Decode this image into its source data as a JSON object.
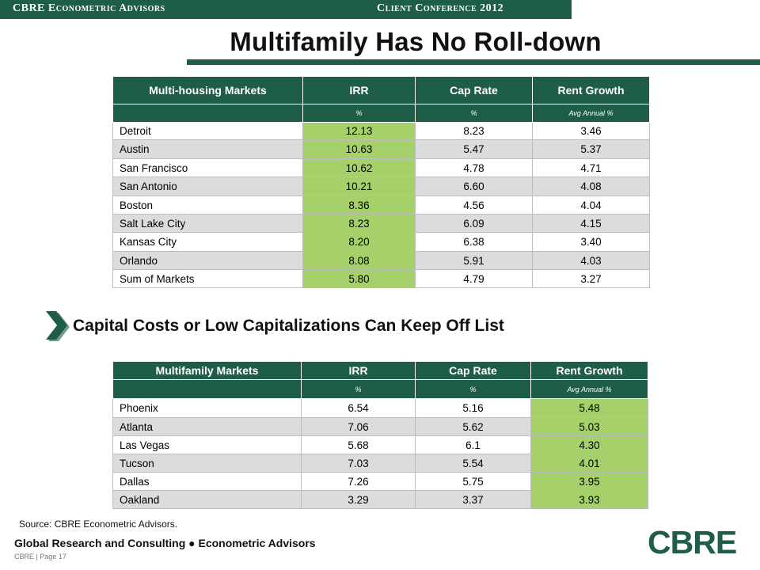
{
  "header": {
    "org": "CBRE Econometric Advisors",
    "event": "Client Conference 2012"
  },
  "title": "Multifamily Has No Roll-down",
  "table1": {
    "headers": [
      "Multi-housing Markets",
      "IRR",
      "Cap Rate",
      "Rent Growth"
    ],
    "units": [
      "",
      "%",
      "%",
      "Avg Annual %"
    ],
    "rows": [
      {
        "market": "Detroit",
        "irr": "12.13",
        "cap": "8.23",
        "rent": "3.46"
      },
      {
        "market": "Austin",
        "irr": "10.63",
        "cap": "5.47",
        "rent": "5.37"
      },
      {
        "market": "San Francisco",
        "irr": "10.62",
        "cap": "4.78",
        "rent": "4.71"
      },
      {
        "market": "San Antonio",
        "irr": "10.21",
        "cap": "6.60",
        "rent": "4.08"
      },
      {
        "market": "Boston",
        "irr": "8.36",
        "cap": "4.56",
        "rent": "4.04"
      },
      {
        "market": "Salt Lake City",
        "irr": "8.23",
        "cap": "6.09",
        "rent": "4.15"
      },
      {
        "market": "Kansas City",
        "irr": "8.20",
        "cap": "6.38",
        "rent": "3.40"
      },
      {
        "market": "Orlando",
        "irr": "8.08",
        "cap": "5.91",
        "rent": "4.03"
      },
      {
        "market": "Sum of Markets",
        "irr": "5.80",
        "cap": "4.79",
        "rent": "3.27"
      }
    ]
  },
  "section_heading": "Capital Costs or Low Capitalizations Can Keep Off List",
  "table2": {
    "headers": [
      "Multifamily Markets",
      "IRR",
      "Cap Rate",
      "Rent Growth"
    ],
    "units": [
      "",
      "%",
      "%",
      "Avg Annual %"
    ],
    "rows": [
      {
        "market": "Phoenix",
        "irr": "6.54",
        "cap": "5.16",
        "rent": "5.48"
      },
      {
        "market": "Atlanta",
        "irr": "7.06",
        "cap": "5.62",
        "rent": "5.03"
      },
      {
        "market": "Las Vegas",
        "irr": "5.68",
        "cap": "6.1",
        "rent": "4.30"
      },
      {
        "market": "Tucson",
        "irr": "7.03",
        "cap": "5.54",
        "rent": "4.01"
      },
      {
        "market": "Dallas",
        "irr": "7.26",
        "cap": "5.75",
        "rent": "3.95"
      },
      {
        "market": "Oakland",
        "irr": "3.29",
        "cap": "3.37",
        "rent": "3.93"
      }
    ]
  },
  "source": "Source: CBRE Econometric Advisors.",
  "footer": {
    "line": "Global Research and Consulting ● Econometric Advisors",
    "page": "CBRE | Page 17"
  },
  "logo": "CBRE",
  "colors": {
    "brand_green": "#1f5e46",
    "highlight_green": "#a6d06a",
    "alt_row_gray": "#dcdcdc"
  },
  "icons": {
    "section_marker": "chevron-right-icon"
  }
}
